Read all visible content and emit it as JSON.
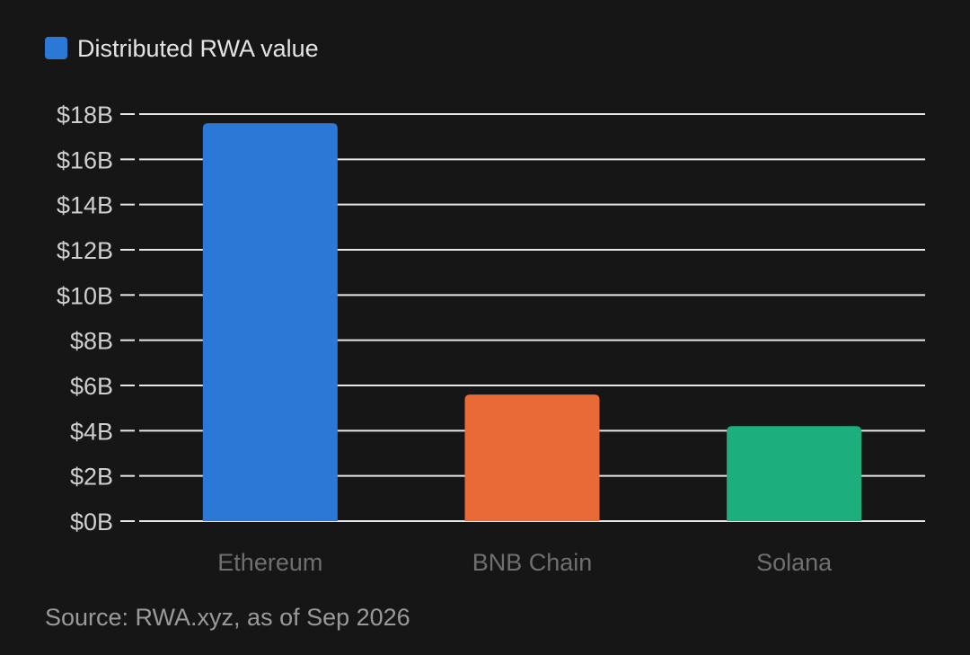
{
  "chart_data": {
    "type": "bar",
    "categories": [
      "Ethereum",
      "BNB Chain",
      "Solana"
    ],
    "series": [
      {
        "name": "Distributed RWA value",
        "values": [
          17.6,
          5.6,
          4.2
        ],
        "colors": [
          "#2b78d6",
          "#e96a36",
          "#1cae7c"
        ]
      }
    ],
    "y_ticks": [
      0,
      2,
      4,
      6,
      8,
      10,
      12,
      14,
      16,
      18
    ],
    "y_tick_labels": [
      "$0B",
      "$2B",
      "$4B",
      "$6B",
      "$8B",
      "$10B",
      "$12B",
      "$14B",
      "$16B",
      "$18B"
    ],
    "ylim": [
      0,
      18
    ],
    "unit": "USD billions",
    "grid": true,
    "legend": {
      "position": "top-left",
      "label": "Distributed RWA value",
      "color": "#2b78d6"
    }
  },
  "source_note": "Source: RWA.xyz, as of Sep 2026",
  "colors": {
    "background": "#161616",
    "gridline": "#e8e8e8",
    "tick_text": "#cfcfcf",
    "category_text": "#6f6f6f",
    "legend_text": "#e4e4e4",
    "source_text": "#9a9a9a"
  }
}
